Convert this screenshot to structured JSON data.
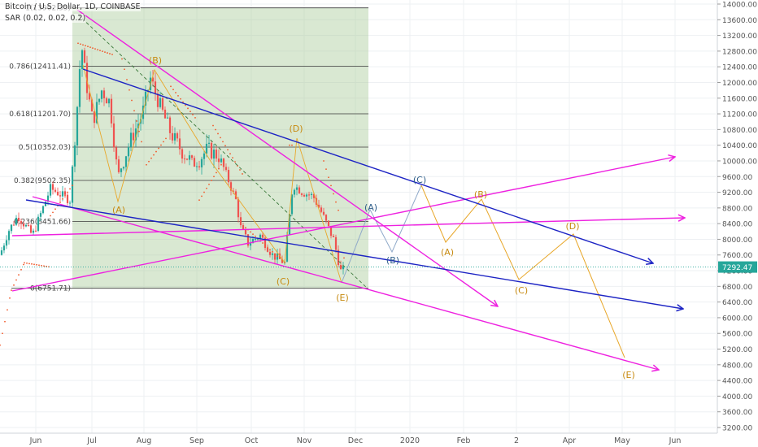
{
  "chart_title": "Bitcoin / U.S. Dollar, 1D, COINBASE",
  "indicator": "SAR (0.02, 0.02, 0.2)",
  "price_tag": "7292.47",
  "chart_data": {
    "type": "candlestick-annotated",
    "title": "Bitcoin / U.S. Dollar, 1D, COINBASE",
    "price_axis": {
      "min": 3200,
      "max": 14000,
      "step": 400,
      "labels": [
        "14000.00",
        "13600.00",
        "13200.00",
        "12800.00",
        "12400.00",
        "12000.00",
        "11600.00",
        "11200.00",
        "10800.00",
        "10400.00",
        "10000.00",
        "9600.00",
        "9200.00",
        "8800.00",
        "8400.00",
        "8000.00",
        "7600.00",
        "7200.00",
        "6800.00",
        "6400.00",
        "6000.00",
        "5600.00",
        "5200.00",
        "4800.00",
        "4400.00",
        "4000.00",
        "3600.00",
        "3200.00"
      ]
    },
    "time_axis": {
      "labels": [
        "Jun",
        "Jul",
        "Aug",
        "Sep",
        "Oct",
        "Nov",
        "Dec",
        "2020",
        "Feb",
        "2",
        "Apr",
        "May",
        "Jun"
      ]
    },
    "fib_levels": [
      {
        "label": "1(13902.35)",
        "value": 13902.35
      },
      {
        "label": "0.786(12411.41)",
        "value": 12411.41
      },
      {
        "label": "0.618(11201.70)",
        "value": 11201.7
      },
      {
        "label": "0.5(10352.03)",
        "value": 10352.03
      },
      {
        "label": "0.382(9502.35)",
        "value": 9502.35
      },
      {
        "label": "0.236(8451.66)",
        "value": 8451.66
      },
      {
        "label": "0(6751.71)",
        "value": 6751.71
      }
    ],
    "wave_labels": {
      "history": [
        "(B)",
        "(A)",
        "(D)",
        "(C)",
        "(E)"
      ],
      "blue": [
        "(A)",
        "(B)",
        "(C)"
      ],
      "projection": [
        "(A)",
        "(B)",
        "(C)",
        "(D)",
        "(E)"
      ]
    },
    "last_price": 7292.47,
    "colors": {
      "up": "#26a69a",
      "down": "#ef5350",
      "fib_zone": "#a5c994",
      "magenta": "#ee22e0",
      "blue": "#1d24c4",
      "orange": "#e8a72a",
      "sar": "#f1592a",
      "label": "#c78a10",
      "price_tag": "#26a69a"
    }
  }
}
